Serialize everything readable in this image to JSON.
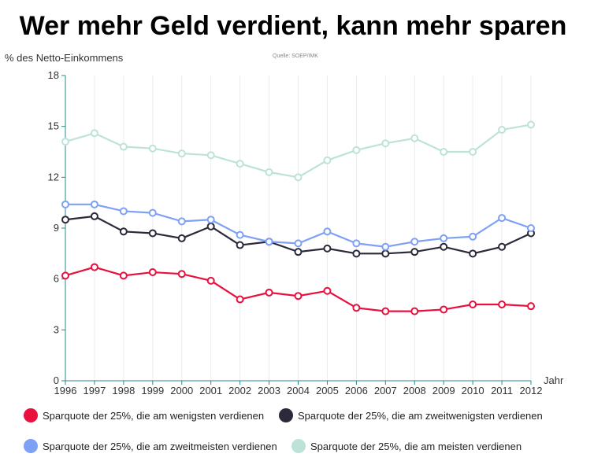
{
  "chart_data": {
    "type": "line",
    "title": "Wer mehr Geld verdient, kann mehr sparen",
    "ylabel": "% des Netto-Einkommens",
    "xlabel": "Jahr",
    "source": "Quelle: SOEP/IMK",
    "ylim": [
      0,
      18
    ],
    "yticks": [
      "0",
      "3",
      "6",
      "9",
      "12",
      "15",
      "18"
    ],
    "x": [
      "1996",
      "1997",
      "1998",
      "1999",
      "2000",
      "2001",
      "2002",
      "2003",
      "2004",
      "2005",
      "2006",
      "2007",
      "2008",
      "2009",
      "2010",
      "2011",
      "2012"
    ],
    "grid": "vertical",
    "legend_position": "bottom",
    "series": [
      {
        "name": "Sparquote der 25%, die am wenigsten verdienen",
        "color": "#e8103e",
        "values": [
          6.2,
          6.7,
          6.2,
          6.4,
          6.3,
          5.9,
          4.8,
          5.2,
          5.0,
          5.3,
          4.3,
          4.1,
          4.1,
          4.2,
          4.5,
          4.5,
          4.4
        ]
      },
      {
        "name": "Sparquote der 25%, die am zweitwenigsten verdienen",
        "color": "#2a2a3a",
        "values": [
          9.5,
          9.7,
          8.8,
          8.7,
          8.4,
          9.1,
          8.0,
          8.2,
          7.6,
          7.8,
          7.5,
          7.5,
          7.6,
          7.9,
          7.5,
          7.9,
          8.7
        ]
      },
      {
        "name": "Sparquote der 25%, die am zweitmeisten verdienen",
        "color": "#7ea0f5",
        "values": [
          10.4,
          10.4,
          10.0,
          9.9,
          9.4,
          9.5,
          8.6,
          8.2,
          8.1,
          8.8,
          8.1,
          7.9,
          8.2,
          8.4,
          8.5,
          9.6,
          9.0
        ]
      },
      {
        "name": "Sparquote der 25%, die am meisten verdienen",
        "color": "#bde3d9",
        "values": [
          14.1,
          14.6,
          13.8,
          13.7,
          13.4,
          13.3,
          12.8,
          12.3,
          12.0,
          13.0,
          13.6,
          14.0,
          14.3,
          13.5,
          13.5,
          14.8,
          15.1
        ]
      }
    ]
  }
}
